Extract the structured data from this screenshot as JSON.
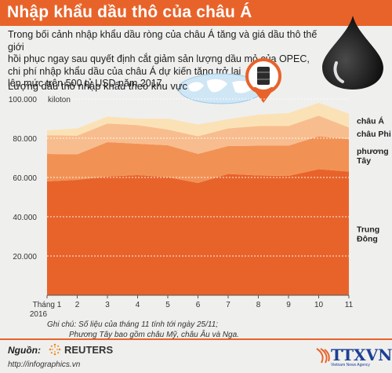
{
  "header": {
    "title": "Nhập khẩu dầu thô của châu Á"
  },
  "intro": {
    "lines": [
      "Trong bối cảnh nhập khẩu dầu ròng của châu Á tăng và giá dầu thô thế giới",
      "hồi phục ngay sau quyết định cắt giảm sản lượng dầu mỏ của OPEC,",
      "chi phí nhập khẩu dầu của châu Á dự kiến tăng trở lại",
      "lên mức trên 500 tỷ USD năm 2017."
    ]
  },
  "chart_title": "Lượng dầu thô nhập khẩu theo khu vực",
  "chart_data": {
    "type": "area",
    "stacked": true,
    "unit_label": "kiloton",
    "categories": [
      "Tháng 1\n2016",
      "2",
      "3",
      "4",
      "5",
      "6",
      "7",
      "8",
      "9",
      "10",
      "11"
    ],
    "ylim": [
      0,
      100000
    ],
    "yticks": [
      0,
      20000,
      40000,
      60000,
      80000,
      100000
    ],
    "ytick_labels": [
      "",
      "20.000",
      "40.000",
      "60.000",
      "80.000",
      "100.000"
    ],
    "grid": true,
    "legend_placement": "right",
    "series": [
      {
        "name": "Trung Đông",
        "color": "#e8632a",
        "values": [
          58000,
          58800,
          60500,
          61200,
          60200,
          57200,
          61800,
          61000,
          60800,
          64200,
          63000
        ]
      },
      {
        "name": "phương Tây",
        "color": "#f29154",
        "values": [
          14000,
          13000,
          17500,
          16000,
          16200,
          14800,
          14200,
          15200,
          15400,
          16800,
          16500
        ]
      },
      {
        "name": "châu Phi",
        "color": "#f8bd8e",
        "values": [
          9500,
          9500,
          9500,
          9500,
          8000,
          9000,
          9000,
          10000,
          10000,
          10500,
          6000
        ]
      },
      {
        "name": "châu Á",
        "color": "#fbe2b6",
        "values": [
          2500,
          3700,
          3500,
          3300,
          5600,
          6000,
          4700,
          5800,
          6600,
          6500,
          7000
        ]
      }
    ]
  },
  "notes": {
    "line1": "Ghi chú: Số liệu của tháng 11 tính tới ngày 25/11;",
    "line2": "Phương Tây bao gồm châu Mỹ, châu Âu và Nga."
  },
  "footer": {
    "source_label": "Nguồn:",
    "source_name": "REUTERS",
    "website": "http://infographics.vn",
    "logo_text": "TTXVN",
    "logo_subtext": "Vietnam News Agency"
  },
  "colors": {
    "accent": "#e8632a",
    "background": "#efefee",
    "logo": "#1c3f94"
  },
  "icons": [
    "oil-drop-icon",
    "globe-map-icon",
    "oil-barrel-icon",
    "map-pin-icon",
    "reuters-logo-icon",
    "ttxvn-logo-icon"
  ]
}
